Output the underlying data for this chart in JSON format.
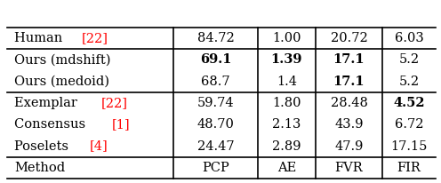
{
  "headers": [
    "Method",
    "PCP",
    "AE",
    "FVR",
    "FIR"
  ],
  "rows": [
    {
      "cells": [
        "Poselets [4]",
        "24.47",
        "2.89",
        "47.9",
        "17.15"
      ],
      "bold": [
        false,
        false,
        false,
        false,
        false
      ],
      "ref_color": "red",
      "group": "prior"
    },
    {
      "cells": [
        "Consensus [1]",
        "48.70",
        "2.13",
        "43.9",
        "6.72"
      ],
      "bold": [
        false,
        false,
        false,
        false,
        false
      ],
      "ref_color": "red",
      "group": "prior"
    },
    {
      "cells": [
        "Exemplar [22]",
        "59.74",
        "1.80",
        "28.48",
        "4.52"
      ],
      "bold": [
        false,
        false,
        false,
        false,
        true
      ],
      "ref_color": "red",
      "group": "prior"
    },
    {
      "cells": [
        "Ours (medoid)",
        "68.7",
        "1.4",
        "17.1",
        "5.2"
      ],
      "bold": [
        false,
        false,
        false,
        true,
        false
      ],
      "ref_color": "black",
      "group": "ours"
    },
    {
      "cells": [
        "Ours (mdshift)",
        "69.1",
        "1.39",
        "17.1",
        "5.2"
      ],
      "bold": [
        false,
        true,
        true,
        true,
        false
      ],
      "ref_color": "black",
      "group": "ours"
    },
    {
      "cells": [
        "Human [22]",
        "84.72",
        "1.00",
        "20.72",
        "6.03"
      ],
      "bold": [
        false,
        false,
        false,
        false,
        false
      ],
      "ref_color": "red",
      "group": "human"
    }
  ],
  "background_color": "#ffffff",
  "line_color": "#000000",
  "font_size": 10.5,
  "font_family": "DejaVu Serif"
}
